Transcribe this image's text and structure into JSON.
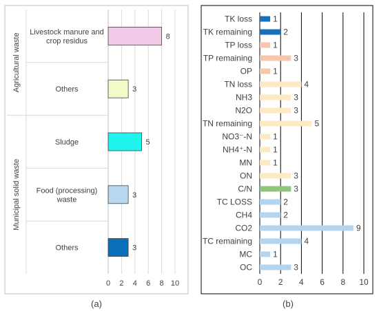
{
  "chart_data": [
    {
      "panel_label": "(a)",
      "type": "bar",
      "orientation": "horizontal",
      "groups": [
        {
          "label": "Agricultural waste",
          "categories": [
            "Livestock manure and crop residus",
            "Others"
          ]
        },
        {
          "label": "Municipal solid waste",
          "categories": [
            "Sludge",
            "Food (processing) waste",
            "Others"
          ]
        }
      ],
      "category_lines": [
        [
          "Livestock manure and",
          "crop residus"
        ],
        [
          "Others"
        ],
        [
          "Sludge"
        ],
        [
          "Food (processing)",
          "waste"
        ],
        [
          "Others"
        ]
      ],
      "values": [
        8,
        3,
        5,
        3,
        3
      ],
      "colors": [
        "#f2c9e6",
        "#f4f9c8",
        "#1ff4ef",
        "#b8d8f0",
        "#0a6fb8"
      ],
      "xlim": [
        0,
        10
      ],
      "xticks": [
        "0",
        "2",
        "4",
        "6",
        "8",
        "10"
      ],
      "grid": true,
      "xlabel": "",
      "ylabel": ""
    },
    {
      "panel_label": "(b)",
      "type": "bar",
      "orientation": "horizontal",
      "categories": [
        "TK loss",
        "TK remaining",
        "TP loss",
        "TP remaining",
        "OP",
        "TN loss",
        "NH3",
        "N2O",
        "TN remaining",
        "NO3⁻-N",
        "NH4⁺-N",
        "MN",
        "ON",
        "C/N",
        "TC LOSS",
        "CH4",
        "CO2",
        "TC remaining",
        "MC",
        "OC"
      ],
      "values": [
        1,
        2,
        1,
        3,
        1,
        4,
        3,
        3,
        5,
        1,
        1,
        1,
        3,
        3,
        2,
        2,
        9,
        4,
        1,
        3
      ],
      "colors": [
        "#1770b8",
        "#1770b8",
        "#f6c7ab",
        "#f6c7ab",
        "#f6c7ab",
        "#fcebc2",
        "#fcebc2",
        "#fcebc2",
        "#fcebc2",
        "#fcebc2",
        "#fcebc2",
        "#fcebc2",
        "#fcebc2",
        "#8ec67a",
        "#b4d4ee",
        "#b4d4ee",
        "#b4d4ee",
        "#b4d4ee",
        "#b4d4ee",
        "#b4d4ee"
      ],
      "xlim": [
        0,
        10
      ],
      "xticks": [
        "0",
        "2",
        "4",
        "6",
        "8",
        "10"
      ],
      "grid": true,
      "xlabel": "",
      "ylabel": ""
    }
  ]
}
